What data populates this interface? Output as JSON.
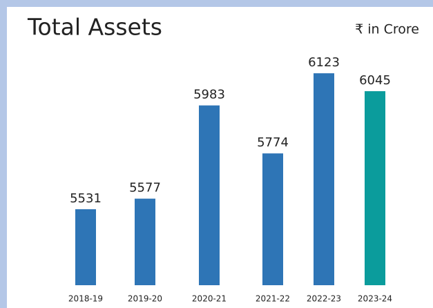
{
  "chart_data": {
    "type": "bar",
    "title": "Total Assets",
    "subtitle": "₹ in Crore",
    "categories": [
      "2018-19",
      "2019-20",
      "2020-21",
      "2021-22",
      "2022-23",
      "2023-24"
    ],
    "values": [
      5531,
      5577,
      5983,
      5774,
      6123,
      6045
    ],
    "colors": [
      "#2e75b6",
      "#2e75b6",
      "#2e75b6",
      "#2e75b6",
      "#2e75b6",
      "#0b9c9c"
    ],
    "ylim": [
      5200,
      6400
    ]
  }
}
